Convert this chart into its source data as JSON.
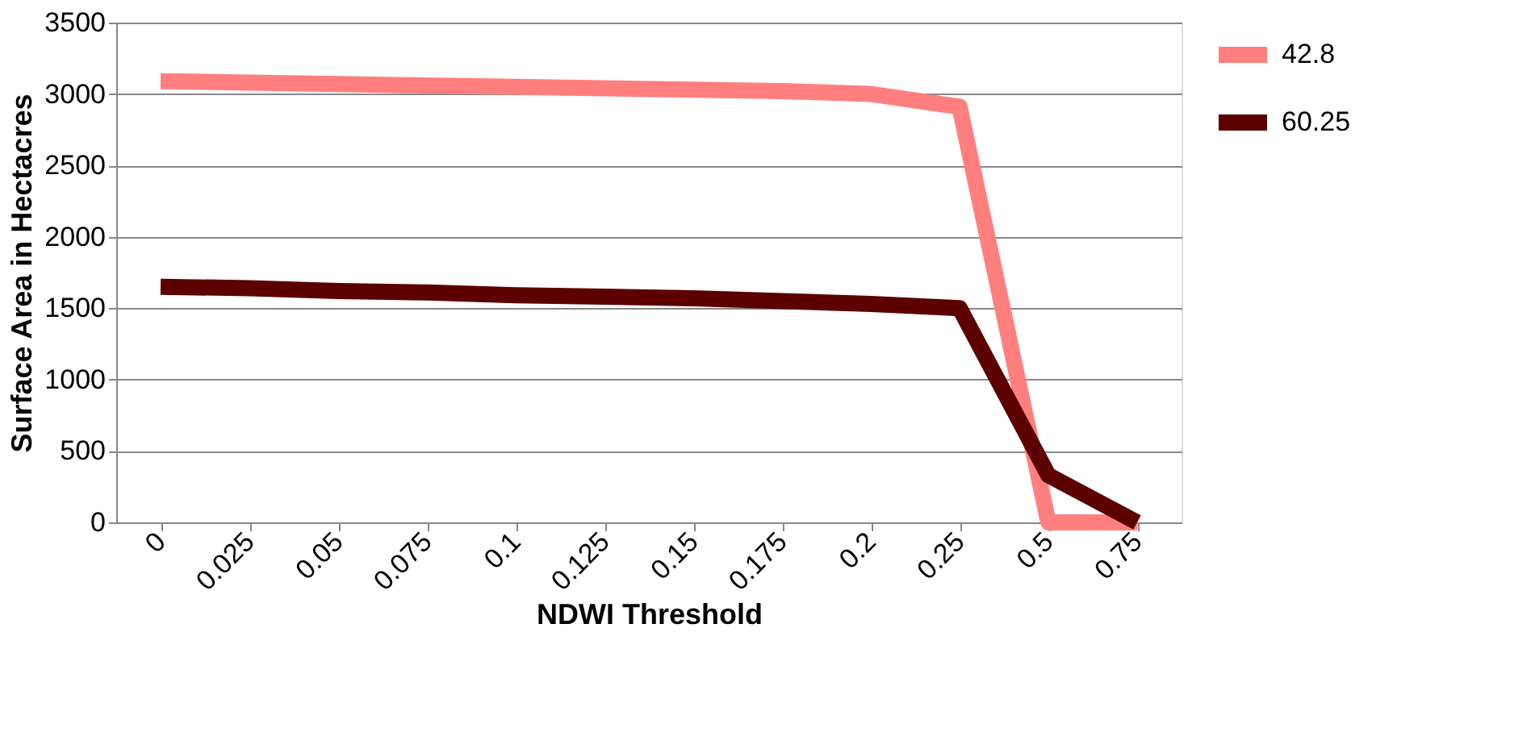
{
  "chart_data": {
    "type": "line",
    "xlabel": "NDWI Threshold",
    "ylabel": "Surface Area in Hectacres",
    "categories": [
      "0",
      "0.025",
      "0.05",
      "0.075",
      "0.1",
      "0.125",
      "0.15",
      "0.175",
      "0.2",
      "0.25",
      "0.5",
      "0.75"
    ],
    "series": [
      {
        "name": "42.8",
        "color": "#ff7f7f",
        "values": [
          3090,
          3080,
          3070,
          3060,
          3050,
          3040,
          3030,
          3020,
          3000,
          2910,
          0,
          0
        ]
      },
      {
        "name": "60.25",
        "color": "#5c0000",
        "values": [
          1650,
          1640,
          1620,
          1610,
          1590,
          1580,
          1570,
          1550,
          1530,
          1500,
          330,
          0
        ]
      }
    ],
    "ylim": [
      0,
      3500
    ],
    "yticks": [
      0,
      500,
      1000,
      1500,
      2000,
      2500,
      3000,
      3500
    ],
    "grid": "y",
    "legend": "right",
    "marker": "none",
    "line_style": "solid"
  }
}
